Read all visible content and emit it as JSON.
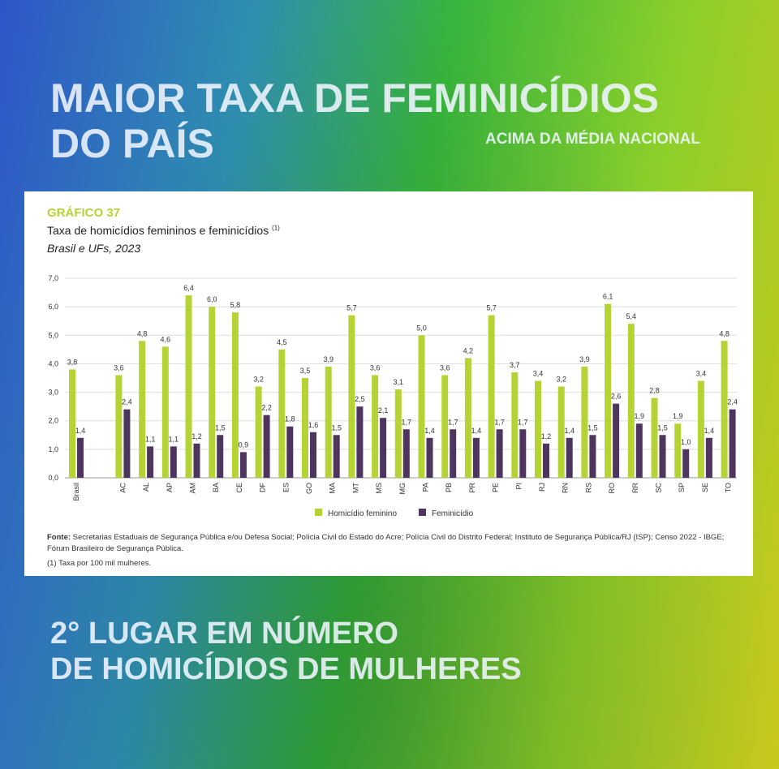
{
  "headline": {
    "line1": "MAIOR TAXA DE FEMINICÍDIOS",
    "line2": "DO PAÍS",
    "subtitle": "ACIMA DA MÉDIA NACIONAL"
  },
  "bottom": {
    "line1": "2° LUGAR EM  NÚMERO",
    "line2": "DE HOMICÍDIOS DE MULHERES"
  },
  "colors": {
    "homicidio": "#b5d334",
    "feminicidio": "#4d3560",
    "grafico_label": "#b5d334"
  },
  "chart_data": {
    "type": "bar",
    "label": "GRÁFICO 37",
    "title": "Taxa de homicídios femininos e feminicídios",
    "title_note": "(1)",
    "subtitle": "Brasil e UFs, 2023",
    "xlabel": "",
    "ylabel": "",
    "ylim": [
      0,
      7
    ],
    "yticks": [
      "0,0",
      "1,0",
      "2,0",
      "3,0",
      "4,0",
      "5,0",
      "6,0",
      "7,0"
    ],
    "grid": true,
    "legend_position": "bottom-center",
    "categories": [
      "Brasil",
      "AC",
      "AL",
      "AP",
      "AM",
      "BA",
      "CE",
      "DF",
      "ES",
      "GO",
      "MA",
      "MT",
      "MS",
      "MG",
      "PA",
      "PB",
      "PR",
      "PE",
      "PI",
      "RJ",
      "RN",
      "RS",
      "RO",
      "RR",
      "SC",
      "SP",
      "SE",
      "TO"
    ],
    "series": [
      {
        "name": "Homicídio feminino",
        "values": [
          3.8,
          3.6,
          4.8,
          4.6,
          6.4,
          6.0,
          5.8,
          3.2,
          4.5,
          3.5,
          3.9,
          5.7,
          3.6,
          3.1,
          5.0,
          3.6,
          4.2,
          5.7,
          3.7,
          3.4,
          3.2,
          3.9,
          6.1,
          5.4,
          2.8,
          1.9,
          3.4,
          4.8
        ]
      },
      {
        "name": "Feminicídio",
        "values": [
          1.4,
          2.4,
          1.1,
          1.1,
          1.2,
          1.5,
          0.9,
          2.2,
          1.8,
          1.6,
          1.5,
          2.5,
          2.1,
          1.7,
          1.4,
          1.7,
          1.4,
          1.7,
          1.7,
          1.2,
          1.4,
          1.5,
          2.6,
          1.9,
          1.5,
          1.0,
          1.4,
          2.4
        ]
      }
    ]
  },
  "footer": {
    "source_label": "Fonte:",
    "source_text": " Secretarias Estaduais de Segurança Pública e/ou Defesa Social; Polícia Civil do Estado do Acre; Polícia Civil do Distrito Federal; Instituto de Segurança Pública/RJ (ISP); Censo 2022 - IBGE; Fórum Brasileiro de Segurança Pública.",
    "note": "(1) Taxa por 100 mil mulheres."
  }
}
